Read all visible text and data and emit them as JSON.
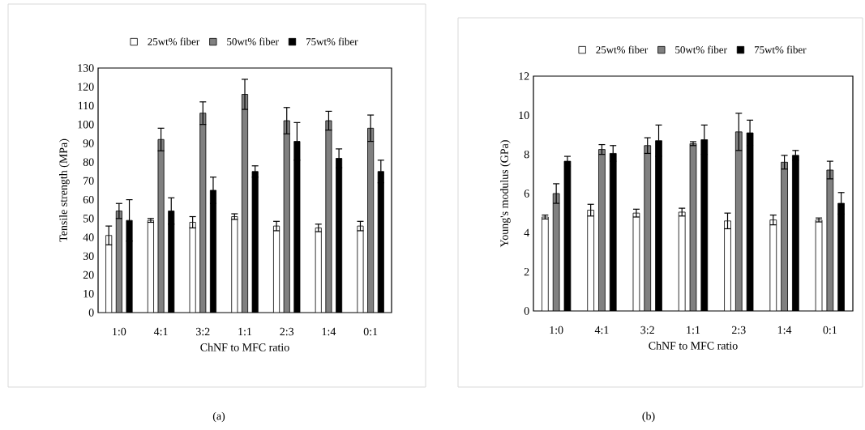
{
  "chart_data": [
    {
      "type": "bar",
      "categories": [
        "1:0",
        "4:1",
        "3:2",
        "1:1",
        "2:3",
        "1:4",
        "0:1"
      ],
      "xlabel": "ChNF to MFC ratio",
      "ylabel": "Tensile strength (MPa)",
      "ylim": [
        0,
        130
      ],
      "yticks": [
        0,
        10,
        20,
        30,
        40,
        50,
        60,
        70,
        80,
        90,
        100,
        110,
        120,
        130
      ],
      "legend": "top",
      "annotations": [
        "(a)"
      ],
      "series": [
        {
          "name": "25wt% fiber",
          "color": "#ffffff",
          "values": [
            41,
            49,
            48,
            51,
            46,
            45,
            46
          ],
          "errors": [
            5,
            1,
            3,
            1.5,
            2.5,
            2,
            2.5
          ]
        },
        {
          "name": "50wt% fiber",
          "color": "#808080",
          "values": [
            54,
            92,
            106,
            116,
            102,
            102,
            98
          ],
          "errors": [
            4,
            6,
            6,
            8,
            7,
            5,
            7
          ]
        },
        {
          "name": "75wt% fiber",
          "color": "#000000",
          "values": [
            49,
            54,
            65,
            75,
            91,
            82,
            75
          ],
          "errors": [
            11,
            7,
            7,
            3,
            10,
            5,
            6
          ]
        }
      ]
    },
    {
      "type": "bar",
      "categories": [
        "1:0",
        "4:1",
        "3:2",
        "1:1",
        "2:3",
        "1:4",
        "0:1"
      ],
      "xlabel": "ChNF to MFC ratio",
      "ylabel": "Young's modulus (GPa)",
      "ylim": [
        0,
        12
      ],
      "yticks": [
        0,
        2,
        4,
        6,
        8,
        10,
        12
      ],
      "legend": "top",
      "annotations": [
        "(b)"
      ],
      "series": [
        {
          "name": "25wt% fiber",
          "color": "#ffffff",
          "values": [
            4.8,
            5.15,
            5.0,
            5.05,
            4.6,
            4.65,
            4.65
          ],
          "errors": [
            0.1,
            0.3,
            0.2,
            0.2,
            0.4,
            0.25,
            0.1
          ]
        },
        {
          "name": "50wt% fiber",
          "color": "#808080",
          "values": [
            6.0,
            8.25,
            8.45,
            8.55,
            9.15,
            7.6,
            7.2
          ],
          "errors": [
            0.5,
            0.25,
            0.4,
            0.1,
            0.95,
            0.35,
            0.45
          ]
        },
        {
          "name": "75wt% fiber",
          "color": "#000000",
          "values": [
            7.65,
            8.05,
            8.7,
            8.75,
            9.1,
            7.95,
            5.5
          ],
          "errors": [
            0.25,
            0.4,
            0.8,
            0.75,
            0.65,
            0.25,
            0.55
          ]
        }
      ]
    }
  ]
}
